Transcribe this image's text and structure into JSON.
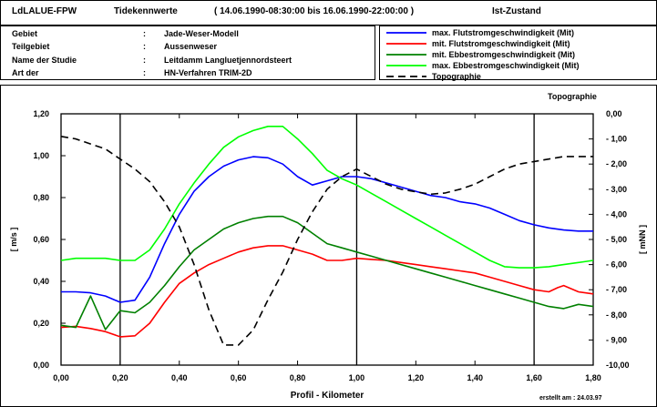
{
  "header": {
    "left": "LdLALUE-FPW",
    "mid": "Tidekennwerte",
    "range": "( 14.06.1990-08:30:00  bis  16.06.1990-22:00:00 )",
    "state": "Ist-Zustand"
  },
  "info": [
    {
      "label": "Gebiet",
      "sep": ":",
      "value": "Jade-Weser-Modell"
    },
    {
      "label": "Teilgebiet",
      "sep": ":",
      "value": "Aussenweser"
    },
    {
      "label": "Name der Studie",
      "sep": ":",
      "value": "Leitdamm Langluetjennordsteert"
    },
    {
      "label": "Art der",
      "sep": ":",
      "value": "HN-Verfahren TRIM-2D"
    }
  ],
  "footer": {
    "created": "erstellt am :  24.03.97"
  },
  "colors": {
    "flut_max": "#0000ff",
    "flut_mit": "#ff0000",
    "ebbe_mit": "#008000",
    "ebbe_max": "#00ff00",
    "topo": "#000000"
  },
  "chart_data": {
    "type": "line",
    "xlabel": "Profil - Kilometer",
    "ylabel": "[ m/s ]",
    "y2label": "[ mNN ]",
    "y2title": "Topographie",
    "xlim": [
      0,
      1.8
    ],
    "ylim": [
      0,
      1.2
    ],
    "y2lim": [
      -10,
      0
    ],
    "xticks": [
      "0,00",
      "0,20",
      "0,40",
      "0,60",
      "0,80",
      "1,00",
      "1,20",
      "1,40",
      "1,60",
      "1,80"
    ],
    "yticks": [
      "0,00",
      "0,20",
      "0,40",
      "0,60",
      "0,80",
      "1,00",
      "1,20"
    ],
    "y2ticks": [
      "0,00",
      "- 1,00",
      "- 2,00",
      "- 3,00",
      "- 4,00",
      "- 5,00",
      "- 6,00",
      "- 7,00",
      "- 8,00",
      "- 9,00",
      "-10,00"
    ],
    "vlines": [
      0.2,
      1.0,
      1.6
    ],
    "series": [
      {
        "name": "max. Flutstromgeschwindigkeit (Mit)",
        "color": "#0000ff",
        "dash": false,
        "axis": "left",
        "x": [
          0,
          0.05,
          0.1,
          0.15,
          0.2,
          0.25,
          0.3,
          0.35,
          0.4,
          0.45,
          0.5,
          0.55,
          0.6,
          0.65,
          0.7,
          0.75,
          0.8,
          0.85,
          0.9,
          0.95,
          1.0,
          1.05,
          1.1,
          1.15,
          1.2,
          1.25,
          1.3,
          1.35,
          1.4,
          1.45,
          1.5,
          1.55,
          1.6,
          1.65,
          1.7,
          1.75,
          1.8
        ],
        "y": [
          0.35,
          0.35,
          0.345,
          0.33,
          0.3,
          0.31,
          0.42,
          0.58,
          0.72,
          0.83,
          0.9,
          0.95,
          0.98,
          0.995,
          0.99,
          0.96,
          0.9,
          0.86,
          0.88,
          0.9,
          0.9,
          0.89,
          0.87,
          0.85,
          0.83,
          0.81,
          0.8,
          0.78,
          0.77,
          0.75,
          0.72,
          0.69,
          0.67,
          0.655,
          0.645,
          0.64,
          0.64
        ]
      },
      {
        "name": "mit. Flutstromgeschwindigkeit (Mit)",
        "color": "#ff0000",
        "dash": false,
        "axis": "left",
        "x": [
          0,
          0.05,
          0.1,
          0.15,
          0.2,
          0.25,
          0.3,
          0.35,
          0.4,
          0.45,
          0.5,
          0.55,
          0.6,
          0.65,
          0.7,
          0.75,
          0.8,
          0.85,
          0.9,
          0.95,
          1.0,
          1.05,
          1.1,
          1.15,
          1.2,
          1.25,
          1.3,
          1.35,
          1.4,
          1.45,
          1.5,
          1.55,
          1.6,
          1.65,
          1.68,
          1.7,
          1.75,
          1.8
        ],
        "y": [
          0.18,
          0.185,
          0.175,
          0.16,
          0.135,
          0.14,
          0.2,
          0.3,
          0.39,
          0.44,
          0.48,
          0.51,
          0.54,
          0.56,
          0.57,
          0.57,
          0.55,
          0.53,
          0.5,
          0.5,
          0.51,
          0.505,
          0.5,
          0.49,
          0.48,
          0.47,
          0.46,
          0.45,
          0.44,
          0.42,
          0.4,
          0.38,
          0.36,
          0.35,
          0.37,
          0.38,
          0.35,
          0.34
        ]
      },
      {
        "name": "mit. Ebbestromgeschwindigkeit (Mit)",
        "color": "#008000",
        "dash": false,
        "axis": "left",
        "x": [
          0,
          0.05,
          0.1,
          0.15,
          0.2,
          0.25,
          0.3,
          0.35,
          0.4,
          0.45,
          0.5,
          0.55,
          0.6,
          0.65,
          0.7,
          0.75,
          0.8,
          0.85,
          0.9,
          0.95,
          1.0,
          1.05,
          1.1,
          1.15,
          1.2,
          1.25,
          1.3,
          1.35,
          1.4,
          1.45,
          1.5,
          1.55,
          1.6,
          1.65,
          1.7,
          1.75,
          1.8
        ],
        "y": [
          0.19,
          0.18,
          0.33,
          0.17,
          0.26,
          0.25,
          0.3,
          0.38,
          0.47,
          0.55,
          0.6,
          0.65,
          0.68,
          0.7,
          0.71,
          0.71,
          0.68,
          0.63,
          0.58,
          0.56,
          0.54,
          0.52,
          0.5,
          0.48,
          0.46,
          0.44,
          0.42,
          0.4,
          0.38,
          0.36,
          0.34,
          0.32,
          0.3,
          0.28,
          0.27,
          0.29,
          0.28
        ]
      },
      {
        "name": "max. Ebbestromgeschwindigkeit (Mit)",
        "color": "#00ff00",
        "dash": false,
        "axis": "left",
        "x": [
          0,
          0.05,
          0.1,
          0.15,
          0.2,
          0.25,
          0.3,
          0.35,
          0.4,
          0.45,
          0.5,
          0.55,
          0.6,
          0.65,
          0.7,
          0.75,
          0.8,
          0.85,
          0.9,
          0.95,
          1.0,
          1.05,
          1.1,
          1.15,
          1.2,
          1.25,
          1.3,
          1.35,
          1.4,
          1.45,
          1.5,
          1.55,
          1.6,
          1.65,
          1.7,
          1.75,
          1.8
        ],
        "y": [
          0.5,
          0.51,
          0.51,
          0.51,
          0.5,
          0.5,
          0.55,
          0.65,
          0.77,
          0.87,
          0.96,
          1.04,
          1.09,
          1.12,
          1.14,
          1.14,
          1.08,
          1.01,
          0.93,
          0.89,
          0.86,
          0.82,
          0.78,
          0.74,
          0.7,
          0.66,
          0.62,
          0.58,
          0.54,
          0.5,
          0.47,
          0.465,
          0.465,
          0.47,
          0.48,
          0.49,
          0.5
        ]
      },
      {
        "name": "Topographie",
        "color": "#000000",
        "dash": true,
        "axis": "right",
        "x": [
          0,
          0.05,
          0.1,
          0.15,
          0.2,
          0.25,
          0.3,
          0.35,
          0.4,
          0.45,
          0.5,
          0.55,
          0.6,
          0.65,
          0.7,
          0.75,
          0.8,
          0.85,
          0.9,
          0.95,
          1.0,
          1.05,
          1.1,
          1.15,
          1.2,
          1.25,
          1.3,
          1.35,
          1.4,
          1.45,
          1.5,
          1.55,
          1.6,
          1.65,
          1.7,
          1.75,
          1.8
        ],
        "y": [
          -0.9,
          -1.0,
          -1.2,
          -1.4,
          -1.8,
          -2.2,
          -2.7,
          -3.5,
          -4.5,
          -6.0,
          -7.8,
          -9.2,
          -9.2,
          -8.6,
          -7.4,
          -6.3,
          -5.0,
          -3.9,
          -3.0,
          -2.5,
          -2.2,
          -2.5,
          -2.8,
          -3.0,
          -3.1,
          -3.2,
          -3.15,
          -3.0,
          -2.8,
          -2.5,
          -2.2,
          -2.0,
          -1.9,
          -1.8,
          -1.7,
          -1.7,
          -1.7
        ]
      }
    ]
  }
}
